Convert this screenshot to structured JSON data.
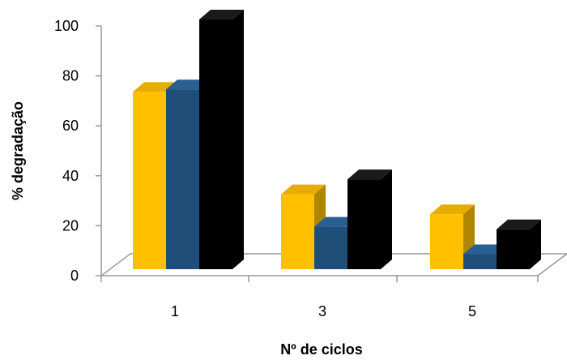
{
  "chart_data": {
    "type": "bar",
    "title": "",
    "xlabel": "Nº de ciclos",
    "ylabel": "% degradação",
    "categories": [
      "1",
      "3",
      "5"
    ],
    "ylim": [
      0,
      100
    ],
    "yticks": [
      "0",
      "20",
      "40",
      "60",
      "80",
      "100"
    ],
    "grid": false,
    "legend": "none",
    "series": [
      {
        "color": "#FFC000",
        "values": [
          71,
          30,
          22
        ]
      },
      {
        "color": "#1F4E79",
        "values": [
          72,
          17,
          6
        ]
      },
      {
        "color": "#000000",
        "values": [
          100,
          36,
          16
        ]
      }
    ]
  }
}
